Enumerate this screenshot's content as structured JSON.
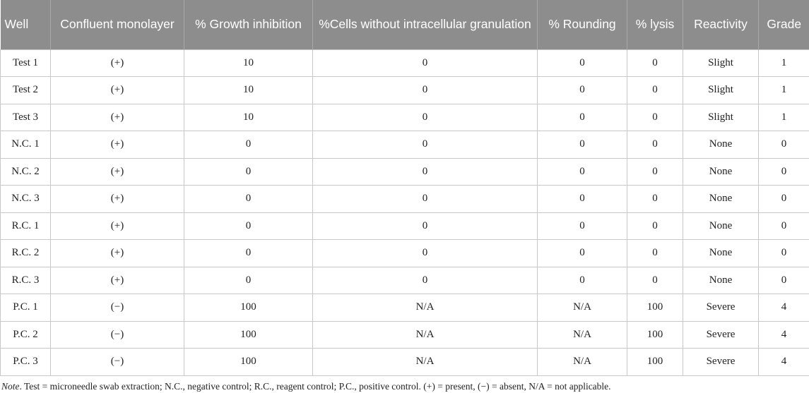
{
  "table": {
    "headers": [
      "Well",
      "Confluent monolayer",
      "% Growth inhibition",
      "%Cells without intracellular granulation",
      "% Rounding",
      "% lysis",
      "Reactivity",
      "Grade"
    ],
    "rows": [
      [
        "Test 1",
        "(+)",
        "10",
        "0",
        "0",
        "0",
        "Slight",
        "1"
      ],
      [
        "Test 2",
        "(+)",
        "10",
        "0",
        "0",
        "0",
        "Slight",
        "1"
      ],
      [
        "Test 3",
        "(+)",
        "10",
        "0",
        "0",
        "0",
        "Slight",
        "1"
      ],
      [
        "N.C. 1",
        "(+)",
        "0",
        "0",
        "0",
        "0",
        "None",
        "0"
      ],
      [
        "N.C. 2",
        "(+)",
        "0",
        "0",
        "0",
        "0",
        "None",
        "0"
      ],
      [
        "N.C. 3",
        "(+)",
        "0",
        "0",
        "0",
        "0",
        "None",
        "0"
      ],
      [
        "R.C. 1",
        "(+)",
        "0",
        "0",
        "0",
        "0",
        "None",
        "0"
      ],
      [
        "R.C. 2",
        "(+)",
        "0",
        "0",
        "0",
        "0",
        "None",
        "0"
      ],
      [
        "R.C. 3",
        "(+)",
        "0",
        "0",
        "0",
        "0",
        "None",
        "0"
      ],
      [
        "P.C. 1",
        "(−)",
        "100",
        "N/A",
        "N/A",
        "100",
        "Severe",
        "4"
      ],
      [
        "P.C. 2",
        "(−)",
        "100",
        "N/A",
        "N/A",
        "100",
        "Severe",
        "4"
      ],
      [
        "P.C. 3",
        "(−)",
        "100",
        "N/A",
        "N/A",
        "100",
        "Severe",
        "4"
      ]
    ]
  },
  "note": {
    "label": "Note",
    "text": ". Test = microneedle swab extraction; N.C., negative control; R.C., reagent control; P.C., positive control. (+) = present, (−) = absent, N/A = not applicable."
  },
  "colors": {
    "header_bg": "#8d8d8d",
    "header_text": "#ffffff",
    "border": "#c8c8c8"
  }
}
